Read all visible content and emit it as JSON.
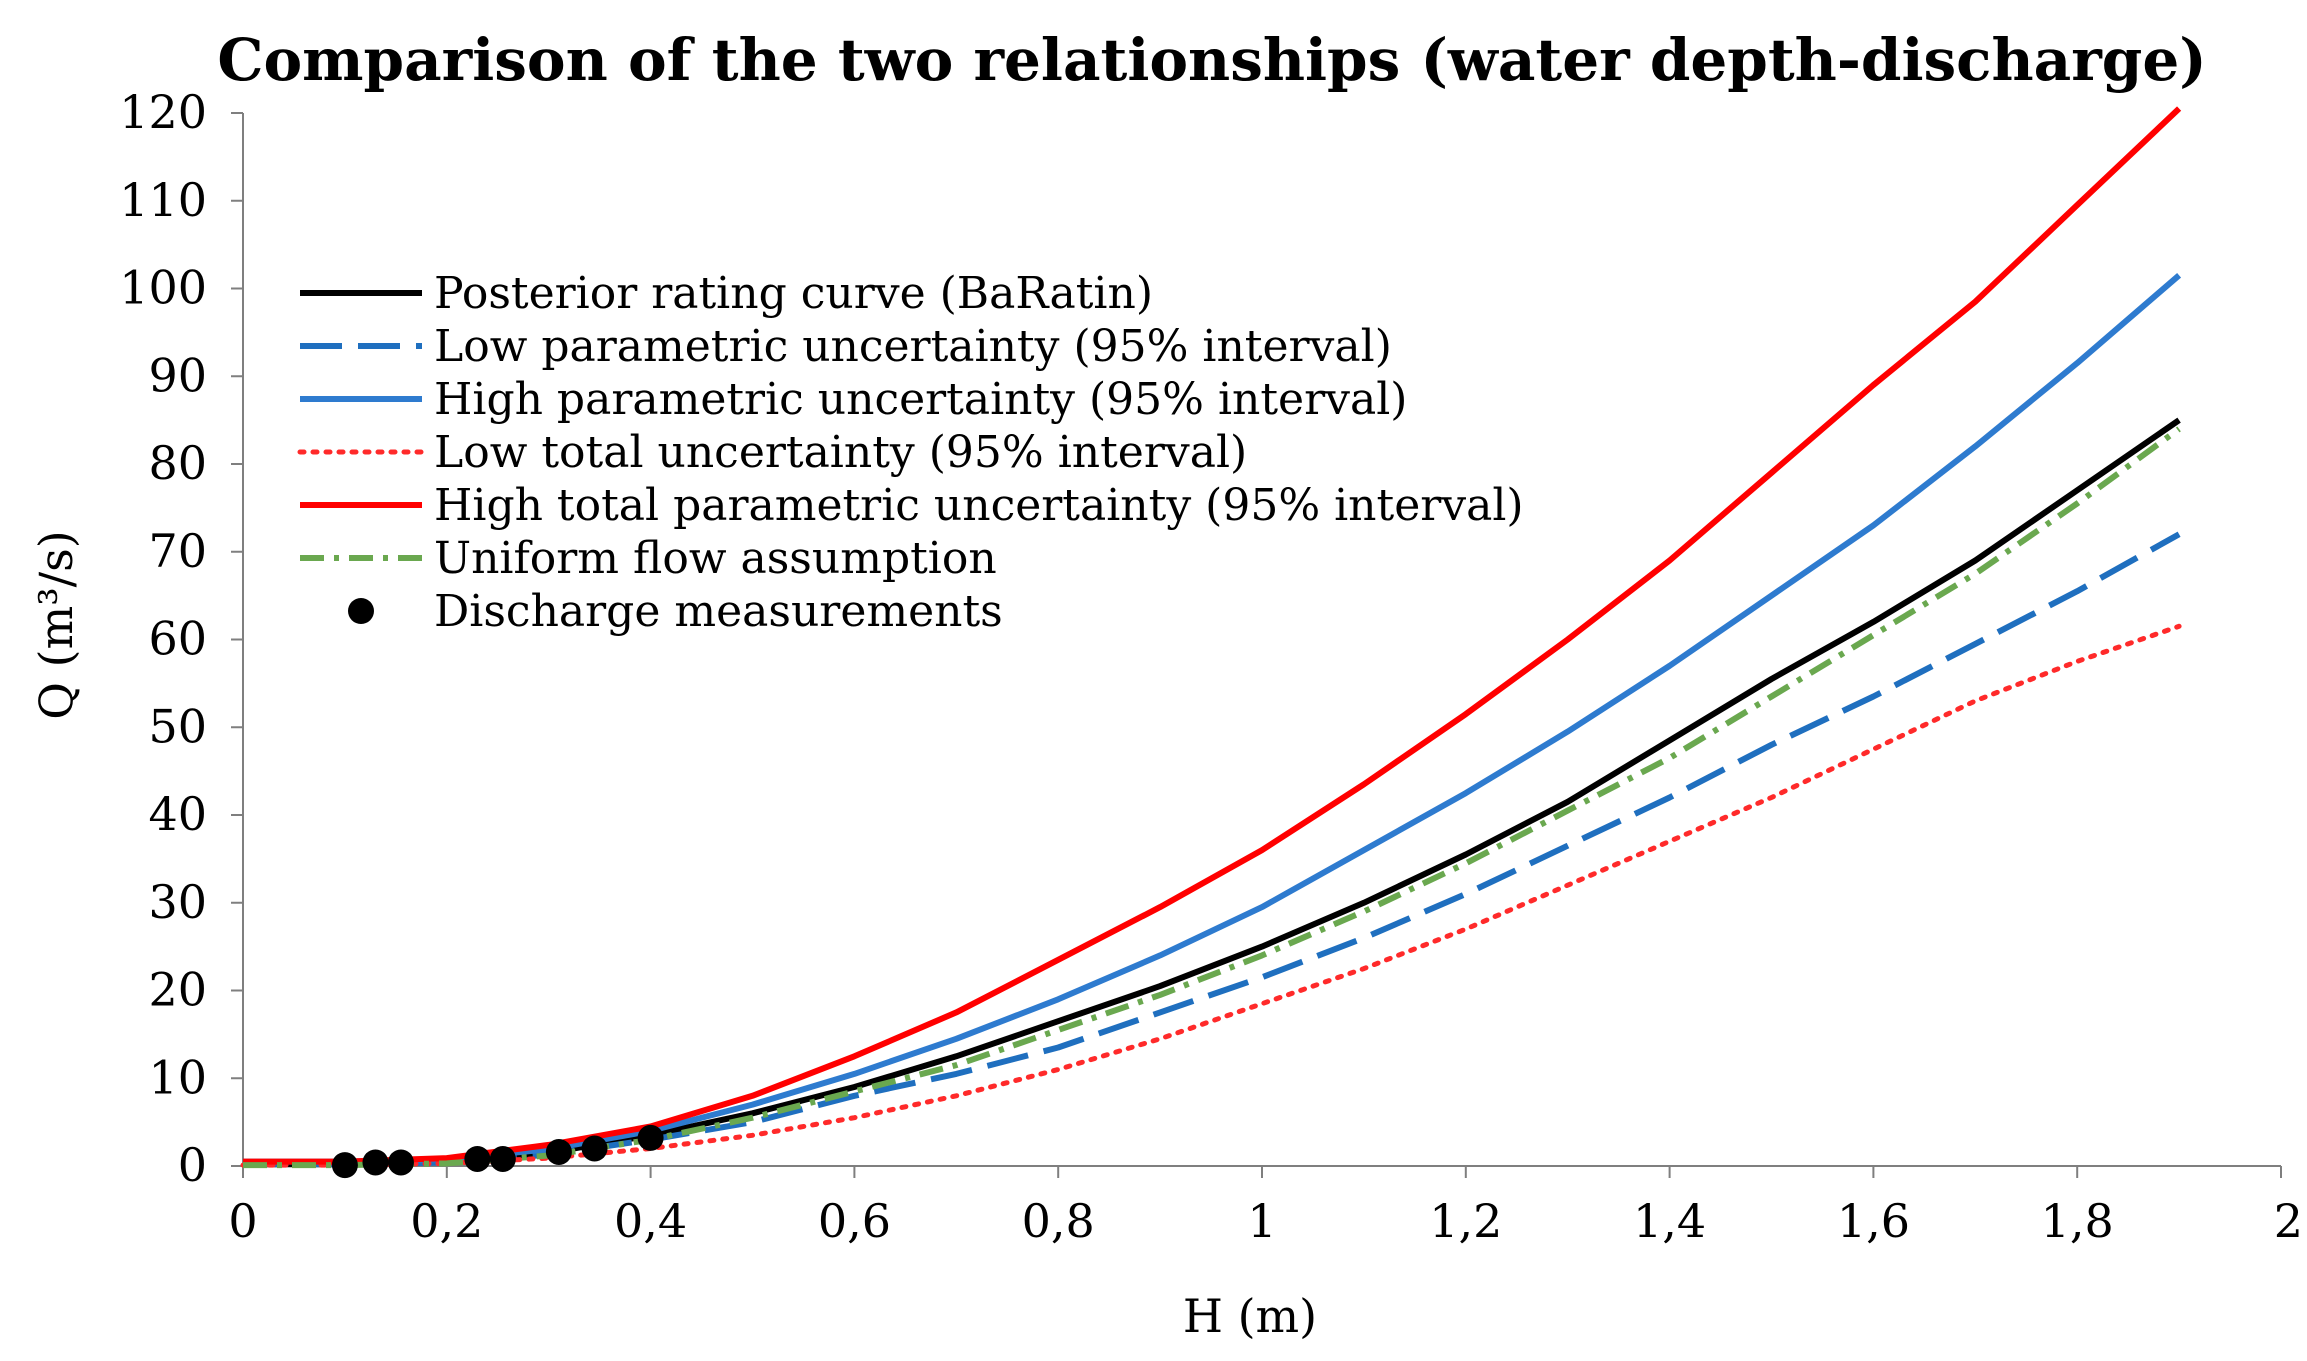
{
  "chart_data": {
    "type": "line",
    "title": "Comparison of the two relationships (water depth-discharge)",
    "xlabel": "H (m)",
    "ylabel": "Q (m³/s)",
    "xlim": [
      0,
      2
    ],
    "ylim": [
      0,
      120
    ],
    "xticks": [
      0,
      0.2,
      0.4,
      0.6,
      0.8,
      1,
      1.2,
      1.4,
      1.6,
      1.8,
      2
    ],
    "xtick_labels": [
      "0",
      "0,2",
      "0,4",
      "0,6",
      "0,8",
      "1",
      "1,2",
      "1,4",
      "1,6",
      "1,8",
      "2"
    ],
    "yticks": [
      0,
      10,
      20,
      30,
      40,
      50,
      60,
      70,
      80,
      90,
      100,
      110,
      120
    ],
    "ytick_labels": [
      "0",
      "10",
      "20",
      "30",
      "40",
      "50",
      "60",
      "70",
      "80",
      "90",
      "100",
      "110",
      "120"
    ],
    "grid": false,
    "legend_position": "top-left",
    "x": [
      0,
      0.1,
      0.2,
      0.3,
      0.4,
      0.5,
      0.6,
      0.7,
      0.8,
      0.9,
      1.0,
      1.1,
      1.2,
      1.3,
      1.4,
      1.5,
      1.6,
      1.7,
      1.8,
      1.9
    ],
    "series": [
      {
        "name": "Posterior rating curve (BaRatin)",
        "color": "#000000",
        "style": "solid",
        "values": [
          0.2,
          0.2,
          0.5,
          1.5,
          3.5,
          6,
          9,
          12.5,
          16.5,
          20.5,
          25,
          30,
          35.5,
          41.5,
          48.5,
          55.5,
          62,
          69,
          77,
          85
        ]
      },
      {
        "name": "Low parametric uncertainty (95% interval)",
        "color": "#1f6fbf",
        "style": "dashed",
        "values": [
          0.2,
          0.2,
          0.4,
          1.3,
          3,
          5,
          8,
          10.5,
          13.5,
          17.5,
          21.5,
          26,
          31,
          36.5,
          42,
          48,
          53.5,
          59.5,
          65.5,
          72
        ]
      },
      {
        "name": "High parametric uncertainty (95% interval)",
        "color": "#2e7bcf",
        "style": "solid",
        "values": [
          0.5,
          0.5,
          0.8,
          1.9,
          4,
          7,
          10.5,
          14.5,
          19,
          24,
          29.5,
          36,
          42.5,
          49.5,
          57,
          65,
          73,
          82,
          91.5,
          101.5
        ]
      },
      {
        "name": "Low total uncertainty (95% interval)",
        "color": "#ff2a2a",
        "style": "dotted",
        "values": [
          0.1,
          0.1,
          0.3,
          0.9,
          2,
          3.5,
          5.5,
          8,
          11,
          14.5,
          18.5,
          22.5,
          27,
          32,
          37,
          42,
          47.5,
          53,
          57.5,
          61.5
        ]
      },
      {
        "name": "High total parametric uncertainty (95% interval)",
        "color": "#ff0000",
        "style": "solid",
        "values": [
          0.5,
          0.5,
          0.9,
          2.4,
          4.5,
          8,
          12.5,
          17.5,
          23.5,
          29.5,
          36,
          43.5,
          51.5,
          60,
          69,
          79,
          89,
          98.5,
          109.5,
          120.5
        ]
      },
      {
        "name": "Uniform flow assumption",
        "color": "#6aa84f",
        "style": "dashdot",
        "values": [
          0.1,
          0.1,
          0.3,
          1.2,
          3,
          5.5,
          8.5,
          11.5,
          15.5,
          19.5,
          24,
          29,
          34.5,
          40.5,
          46.5,
          53.5,
          60.5,
          67.5,
          75.5,
          84
        ]
      }
    ],
    "scatter": {
      "name": "Discharge measurements",
      "color": "#000000",
      "x": [
        0.1,
        0.13,
        0.155,
        0.23,
        0.255,
        0.31,
        0.345,
        0.4
      ],
      "y": [
        0.1,
        0.4,
        0.4,
        0.8,
        0.8,
        1.6,
        2,
        3.2
      ]
    }
  }
}
